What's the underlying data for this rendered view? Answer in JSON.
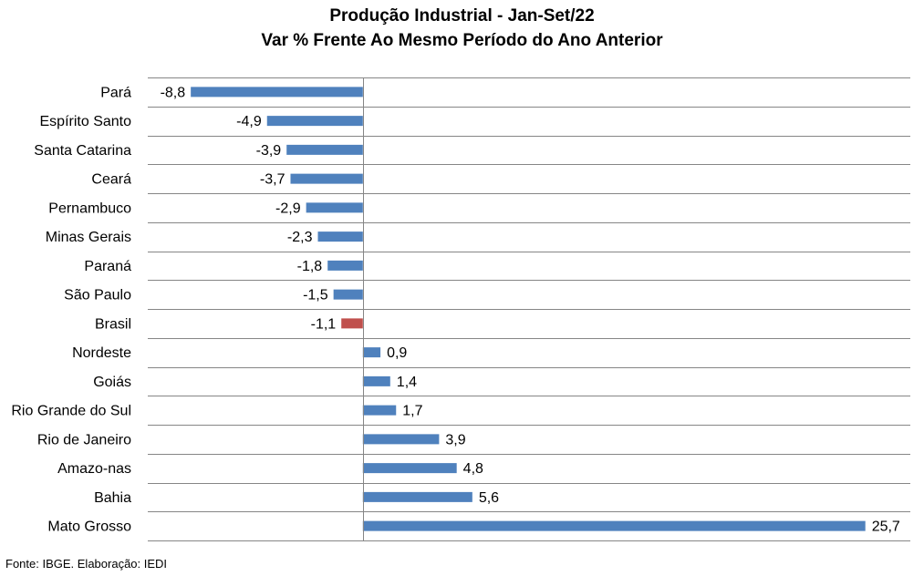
{
  "chart_data": {
    "type": "bar",
    "orientation": "horizontal",
    "title": "Produção Industrial - Jan-Set/22",
    "subtitle": "Var % Frente Ao Mesmo Período do Ano Anterior",
    "categories": [
      "Pará",
      "Espírito Santo",
      "Santa Catarina",
      "Ceará",
      "Pernambuco",
      "Minas Gerais",
      "Paraná",
      "São Paulo",
      "Brasil",
      "Nordeste",
      "Goiás",
      "Rio Grande do Sul",
      "Rio de Janeiro",
      "Amazo-nas",
      "Bahia",
      "Mato Grosso"
    ],
    "values": [
      -8.8,
      -4.9,
      -3.9,
      -3.7,
      -2.9,
      -2.3,
      -1.8,
      -1.5,
      -1.1,
      0.9,
      1.4,
      1.7,
      3.9,
      4.8,
      5.6,
      25.7
    ],
    "value_labels": [
      "-8,8",
      "-4,9",
      "-3,9",
      "-3,7",
      "-2,9",
      "-2,3",
      "-1,8",
      "-1,5",
      "-1,1",
      "0,9",
      "1,4",
      "1,7",
      "3,9",
      "4,8",
      "5,6",
      "25,7"
    ],
    "highlight_category": "Brasil",
    "xlim": [
      -11,
      28
    ],
    "grid": true,
    "colors": {
      "bar": "#4f81bd",
      "highlight": "#c0504d",
      "grid": "#868686",
      "axis": "#868686"
    }
  },
  "footer": {
    "source": "Fonte: IBGE. Elaboração: IEDI"
  }
}
